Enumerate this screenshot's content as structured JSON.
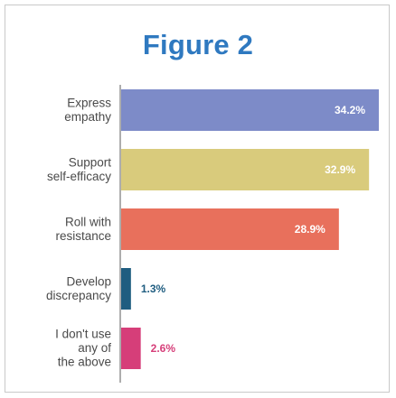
{
  "title": "Figure 2",
  "chart_data": {
    "type": "bar",
    "orientation": "horizontal",
    "categories": [
      [
        "Express",
        "empathy"
      ],
      [
        "Support",
        "self-efficacy"
      ],
      [
        "Roll with",
        "resistance"
      ],
      [
        "Develop",
        "discrepancy"
      ],
      [
        "I don't use",
        "any of",
        "the above"
      ]
    ],
    "values": [
      34.2,
      32.9,
      28.9,
      1.3,
      2.6
    ],
    "value_labels": [
      "34.2%",
      "32.9%",
      "28.9%",
      "1.3%",
      "2.6%"
    ],
    "colors": [
      "#7d8bc8",
      "#d9cb7c",
      "#e8705c",
      "#1f5d80",
      "#d63e79"
    ],
    "xlim": [
      0,
      36
    ],
    "grid": false,
    "legend": "none"
  }
}
